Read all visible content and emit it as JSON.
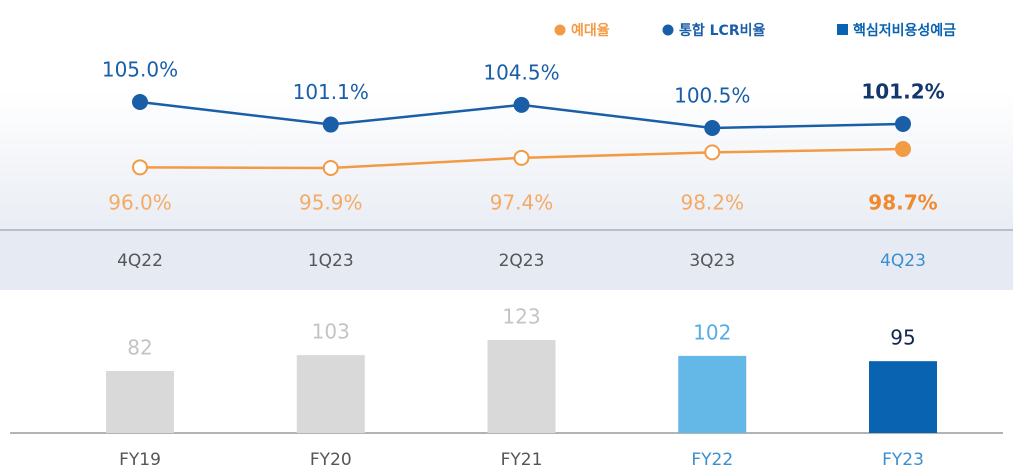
{
  "chart_data": [
    {
      "type": "line",
      "categories": [
        "4Q22",
        "1Q23",
        "2Q23",
        "3Q23",
        "4Q23"
      ],
      "series": [
        {
          "name": "예대율",
          "color": "#f39a45",
          "values": [
            96.0,
            95.9,
            97.4,
            98.2,
            98.7
          ],
          "value_labels": [
            "96.0%",
            "95.9%",
            "97.4%",
            "98.2%",
            "98.7%"
          ]
        },
        {
          "name": "통합 LCR비율",
          "color": "#1a5ea8",
          "values": [
            105.0,
            101.1,
            104.5,
            100.5,
            101.2
          ],
          "value_labels": [
            "105.0%",
            "101.1%",
            "104.5%",
            "100.5%",
            "101.2%"
          ]
        }
      ]
    },
    {
      "type": "bar",
      "categories": [
        "FY19",
        "FY20",
        "FY21",
        "FY22",
        "FY23"
      ],
      "series": [
        {
          "name": "핵심저비용성예금",
          "color": "#0a63b0",
          "values": [
            82,
            103,
            123,
            102,
            95
          ],
          "colors": [
            "#d9d9d9",
            "#d9d9d9",
            "#d9d9d9",
            "#63b8e8",
            "#0a63b0"
          ]
        }
      ]
    }
  ]
}
